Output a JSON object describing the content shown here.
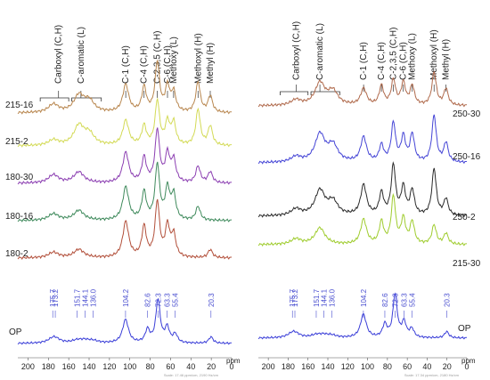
{
  "chart_data": [
    {
      "type": "line",
      "title": "",
      "xlabel": "",
      "x_unit_label": "ppm",
      "xlim": [
        210,
        0
      ],
      "x_reversed": true,
      "x_ticks": [
        "200",
        "180",
        "160",
        "140",
        "120",
        "100",
        "80",
        "60",
        "40",
        "20",
        "0"
      ],
      "group_labels": [
        {
          "text": "Carboxyl (C,H)",
          "x": 170
        },
        {
          "text": "C-aromatic (L)",
          "x": 148
        },
        {
          "text": "C-1 (C,H)",
          "x": 104
        },
        {
          "text": "C-4 (C,H)",
          "x": 86
        },
        {
          "text": "C-2,3,5 (C,H)",
          "x": 73
        },
        {
          "text": "C-6 (C,H)",
          "x": 63
        },
        {
          "text": "Methoxy (L)",
          "x": 57
        },
        {
          "text": "Methoxyl (H)",
          "x": 33
        },
        {
          "text": "Methyl (H)",
          "x": 21
        }
      ],
      "series": [
        {
          "name": "215-16",
          "color": "#b8864e",
          "peaks": [
            [
              175,
              0.15
            ],
            [
              150,
              0.3
            ],
            [
              140,
              0.2
            ],
            [
              104,
              0.5
            ],
            [
              86,
              0.45
            ],
            [
              73,
              0.9
            ],
            [
              63,
              0.45
            ],
            [
              57,
              0.35
            ],
            [
              33,
              0.55
            ],
            [
              21,
              0.3
            ]
          ]
        },
        {
          "name": "215-2",
          "color": "#d3da55",
          "peaks": [
            [
              175,
              0.1
            ],
            [
              150,
              0.35
            ],
            [
              140,
              0.2
            ],
            [
              104,
              0.45
            ],
            [
              86,
              0.35
            ],
            [
              73,
              0.8
            ],
            [
              63,
              0.4
            ],
            [
              57,
              0.4
            ],
            [
              33,
              0.65
            ],
            [
              21,
              0.35
            ]
          ]
        },
        {
          "name": "180-30",
          "color": "#8c3fb2",
          "peaks": [
            [
              175,
              0.15
            ],
            [
              150,
              0.2
            ],
            [
              104,
              0.55
            ],
            [
              86,
              0.45
            ],
            [
              73,
              0.95
            ],
            [
              63,
              0.5
            ],
            [
              57,
              0.4
            ],
            [
              33,
              0.3
            ],
            [
              21,
              0.2
            ]
          ]
        },
        {
          "name": "180-16",
          "color": "#3f8a5c",
          "peaks": [
            [
              175,
              0.12
            ],
            [
              150,
              0.18
            ],
            [
              104,
              0.6
            ],
            [
              86,
              0.5
            ],
            [
              73,
              1.0
            ],
            [
              63,
              0.55
            ],
            [
              57,
              0.45
            ],
            [
              33,
              0.25
            ]
          ]
        },
        {
          "name": "180-2",
          "color": "#b24f3a",
          "peaks": [
            [
              175,
              0.1
            ],
            [
              150,
              0.15
            ],
            [
              104,
              0.65
            ],
            [
              86,
              0.55
            ],
            [
              73,
              1.0
            ],
            [
              63,
              0.55
            ],
            [
              57,
              0.4
            ],
            [
              21,
              0.15
            ]
          ]
        }
      ],
      "reference": {
        "name": "OP",
        "color": "#3b3fd8",
        "peaks": [
          [
            175.7,
            0.08
          ],
          [
            173.2,
            0.08
          ],
          [
            151.7,
            0.06
          ],
          [
            144.1,
            0.06
          ],
          [
            136.0,
            0.05
          ],
          [
            104.2,
            0.55
          ],
          [
            82.6,
            0.3
          ],
          [
            72.3,
            1.0
          ],
          [
            63.3,
            0.35
          ],
          [
            55.4,
            0.2
          ],
          [
            20.3,
            0.15
          ]
        ]
      },
      "peak_labels": [
        "175.7",
        "173.2",
        "151.7",
        "144.1",
        "136.0",
        "104.2",
        "82.6",
        "72.3",
        "63.3",
        "55.4",
        "20.3"
      ],
      "footnote": "Scale: 17.46 ppm/cm, 2190 Hz/cm"
    },
    {
      "type": "line",
      "title": "",
      "xlabel": "",
      "x_unit_label": "ppm",
      "xlim": [
        210,
        0
      ],
      "x_reversed": true,
      "x_ticks": [
        "200",
        "180",
        "160",
        "140",
        "120",
        "100",
        "80",
        "60",
        "40",
        "20",
        "0"
      ],
      "group_labels": [
        {
          "text": "Carboxyl (C,H)",
          "x": 172
        },
        {
          "text": "C-aromatic (L)",
          "x": 148
        },
        {
          "text": "C-1 (C,H)",
          "x": 104
        },
        {
          "text": "C-4 (C,H)",
          "x": 86
        },
        {
          "text": "C-2,3,5 (C,H)",
          "x": 74
        },
        {
          "text": "C-6 (C,H)",
          "x": 64
        },
        {
          "text": "Methoxy (L)",
          "x": 55
        },
        {
          "text": "Methoxyl (H)",
          "x": 33
        },
        {
          "text": "Methyl (H)",
          "x": 21
        }
      ],
      "series": [
        {
          "name": "250-30",
          "color": "#b06a4c",
          "peaks": [
            [
              172,
              0.1
            ],
            [
              148,
              0.4
            ],
            [
              135,
              0.25
            ],
            [
              104,
              0.3
            ],
            [
              86,
              0.35
            ],
            [
              74,
              0.45
            ],
            [
              64,
              0.4
            ],
            [
              55,
              0.35
            ],
            [
              33,
              0.6
            ],
            [
              21,
              0.3
            ]
          ]
        },
        {
          "name": "250-16",
          "color": "#4545d6",
          "peaks": [
            [
              172,
              0.1
            ],
            [
              148,
              0.5
            ],
            [
              135,
              0.3
            ],
            [
              104,
              0.45
            ],
            [
              86,
              0.3
            ],
            [
              74,
              0.7
            ],
            [
              64,
              0.45
            ],
            [
              55,
              0.5
            ],
            [
              33,
              0.85
            ],
            [
              21,
              0.35
            ]
          ]
        },
        {
          "name": "250-2",
          "color": "#2a2a2a",
          "peaks": [
            [
              172,
              0.12
            ],
            [
              148,
              0.45
            ],
            [
              135,
              0.25
            ],
            [
              104,
              0.55
            ],
            [
              86,
              0.4
            ],
            [
              74,
              0.9
            ],
            [
              64,
              0.5
            ],
            [
              55,
              0.45
            ],
            [
              33,
              0.85
            ],
            [
              21,
              0.3
            ]
          ]
        },
        {
          "name": "215-30",
          "color": "#9fcc2e",
          "peaks": [
            [
              172,
              0.1
            ],
            [
              148,
              0.3
            ],
            [
              104,
              0.45
            ],
            [
              86,
              0.4
            ],
            [
              74,
              0.85
            ],
            [
              64,
              0.45
            ],
            [
              55,
              0.4
            ],
            [
              33,
              0.35
            ],
            [
              21,
              0.2
            ]
          ]
        }
      ],
      "reference": {
        "name": "OP",
        "color": "#3b3fd8",
        "peaks": [
          [
            175.7,
            0.08
          ],
          [
            173.2,
            0.08
          ],
          [
            151.7,
            0.06
          ],
          [
            144.1,
            0.06
          ],
          [
            136.0,
            0.05
          ],
          [
            104.2,
            0.55
          ],
          [
            82.6,
            0.3
          ],
          [
            72.3,
            1.0
          ],
          [
            63.3,
            0.35
          ],
          [
            55.4,
            0.2
          ],
          [
            20.3,
            0.15
          ]
        ]
      },
      "peak_labels": [
        "175.7",
        "173.2",
        "151.7",
        "144.1",
        "136.0",
        "104.2",
        "82.6",
        "72.3",
        "63.3",
        "55.4",
        "20.3"
      ],
      "footnote": "Scale: 17.34 ppm/cm, 2180 Hz/cm"
    }
  ]
}
